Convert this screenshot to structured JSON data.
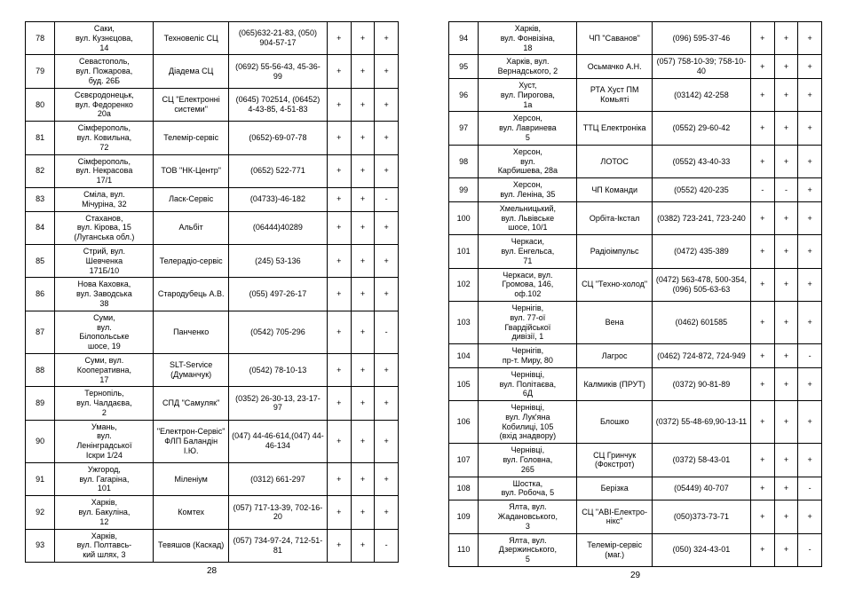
{
  "left": {
    "pageNum": "28",
    "rows": [
      {
        "n": "78",
        "addr": "Саки,\nвул. Кузнєцова,\n14",
        "name": "Техновеліс СЦ",
        "phone": "(065)632-21-83, (050) 904-57-17",
        "c1": "+",
        "c2": "+",
        "c3": "+"
      },
      {
        "n": "79",
        "addr": "Севастополь,\nвул. Пожарова,\nбуд. 26Б",
        "name": "Діадема СЦ",
        "phone": "(0692) 55-56-43, 45-36-99",
        "c1": "+",
        "c2": "+",
        "c3": "+"
      },
      {
        "n": "80",
        "addr": "Сєвєродонецьк,\nвул. Федоренко\n20а",
        "name": "СЦ \"Електронні системи\"",
        "phone": "(0645) 702514, (06452) 4-43-85, 4-51-83",
        "c1": "+",
        "c2": "+",
        "c3": "+"
      },
      {
        "n": "81",
        "addr": "Сімферополь,\nвул. Ковильна,\n72",
        "name": "Телемір-сервіс",
        "phone": "(0652)-69-07-78",
        "c1": "+",
        "c2": "+",
        "c3": "+"
      },
      {
        "n": "82",
        "addr": "Сімферополь,\nвул. Некрасова\n17/1",
        "name": "ТОВ \"НК-Центр\"",
        "phone": "(0652) 522-771",
        "c1": "+",
        "c2": "+",
        "c3": "+"
      },
      {
        "n": "83",
        "addr": "Сміла, вул.\nМічуріна, 32",
        "name": "Ласк-Сервіс",
        "phone": "(04733)-46-182",
        "c1": "+",
        "c2": "+",
        "c3": "-"
      },
      {
        "n": "84",
        "addr": "Стаханов,\nвул. Кірова, 15\n(Луганська обл.)",
        "name": "Альбіт",
        "phone": "(06444)40289",
        "c1": "+",
        "c2": "+",
        "c3": "+"
      },
      {
        "n": "85",
        "addr": "Стрий, вул.\nШевченка\n171Б/10",
        "name": "Телерадіо-сервіс",
        "phone": "(245) 53-136",
        "c1": "+",
        "c2": "+",
        "c3": "+"
      },
      {
        "n": "86",
        "addr": "Нова Каховка,\nвул. Заводська\n38",
        "name": "Стародубець А.В.",
        "phone": "(055) 497-26-17",
        "c1": "+",
        "c2": "+",
        "c3": "+"
      },
      {
        "n": "87",
        "addr": "Суми,\nвул.\nБілопольське\nшосе, 19",
        "name": "Панченко",
        "phone": "(0542) 705-296",
        "c1": "+",
        "c2": "+",
        "c3": "-"
      },
      {
        "n": "88",
        "addr": "Суми, вул.\nКооперативна,\n17",
        "name": "SLT-Service (Думанчук)",
        "phone": "(0542) 78-10-13",
        "c1": "+",
        "c2": "+",
        "c3": "+"
      },
      {
        "n": "89",
        "addr": "Тернопіль,\nвул. Чалдаєва,\n2",
        "name": "СПД \"Самуляк\"",
        "phone": "(0352) 26-30-13, 23-17-97",
        "c1": "+",
        "c2": "+",
        "c3": "+"
      },
      {
        "n": "90",
        "addr": "Умань,\nвул.\nЛенінградської\nІскри 1/24",
        "name": "\"Електрон-Сервіс\" ФЛП Баландін І.Ю.",
        "phone": "(047) 44-46-614,(047) 44-46-134",
        "c1": "+",
        "c2": "+",
        "c3": "+"
      },
      {
        "n": "91",
        "addr": "Ужгород,\nвул. Гагаріна,\n101",
        "name": "Міленіум",
        "phone": "(0312) 661-297",
        "c1": "+",
        "c2": "+",
        "c3": "+"
      },
      {
        "n": "92",
        "addr": "Харків,\nвул. Бакуліна,\n12",
        "name": "Комтех",
        "phone": "(057) 717-13-39, 702-16-20",
        "c1": "+",
        "c2": "+",
        "c3": "+"
      },
      {
        "n": "93",
        "addr": "Харків,\nвул. Полтавсь-\nкий шлях, 3",
        "name": "Тевяшов (Каскад)",
        "phone": "(057) 734-97-24, 712-51-81",
        "c1": "+",
        "c2": "+",
        "c3": "-"
      }
    ]
  },
  "right": {
    "pageNum": "29",
    "rows": [
      {
        "n": "94",
        "addr": "Харків,\nвул. Фонвізіна,\n18",
        "name": "ЧП \"Саванов\"",
        "phone": "(096) 595-37-46",
        "c1": "+",
        "c2": "+",
        "c3": "+"
      },
      {
        "n": "95",
        "addr": "Харків, вул.\nВернадського, 2",
        "name": "Осьмачко А.Н.",
        "phone": "(057) 758-10-39; 758-10-40",
        "c1": "+",
        "c2": "+",
        "c3": "+"
      },
      {
        "n": "96",
        "addr": "Хуст,\nвул. Пирогова,\n1а",
        "name": "РТА Хуст ПМ Комьяті",
        "phone": "(03142) 42-258",
        "c1": "+",
        "c2": "+",
        "c3": "+"
      },
      {
        "n": "97",
        "addr": "Херсон,\nвул. Лавринева\n5",
        "name": "ТТЦ Електроніка",
        "phone": "(0552) 29-60-42",
        "c1": "+",
        "c2": "+",
        "c3": "+"
      },
      {
        "n": "98",
        "addr": "Херсон,\nвул.\nКарбишева, 28а",
        "name": "ЛОТОС",
        "phone": "(0552) 43-40-33",
        "c1": "+",
        "c2": "+",
        "c3": "+"
      },
      {
        "n": "99",
        "addr": "Херсон,\nвул. Леніна, 35",
        "name": "ЧП Команди",
        "phone": "(0552) 420-235",
        "c1": "-",
        "c2": "-",
        "c3": "+"
      },
      {
        "n": "100",
        "addr": "Хмельницький,\nвул. Львівське\nшосе, 10/1",
        "name": "Орбіта-Ікстал",
        "phone": "(0382) 723-241, 723-240",
        "c1": "+",
        "c2": "+",
        "c3": "+"
      },
      {
        "n": "101",
        "addr": "Черкаси,\nвул. Енгельса,\n71",
        "name": "Радіоімпульс",
        "phone": "(0472) 435-389",
        "c1": "+",
        "c2": "+",
        "c3": "+"
      },
      {
        "n": "102",
        "addr": "Черкаси, вул.\nГромова, 146,\nоф.102",
        "name": "СЦ \"Техно-холод\"",
        "phone": "(0472) 563-478, 500-354, (096) 505-63-63",
        "c1": "+",
        "c2": "+",
        "c3": "+"
      },
      {
        "n": "103",
        "addr": "Чернігів,\nвул. 77-ої\nГвардійської\nдивізії, 1",
        "name": "Вена",
        "phone": "(0462) 601585",
        "c1": "+",
        "c2": "+",
        "c3": "+"
      },
      {
        "n": "104",
        "addr": "Чернігів,\nпр-т. Миру, 80",
        "name": "Лагрос",
        "phone": "(0462) 724-872, 724-949",
        "c1": "+",
        "c2": "+",
        "c3": "-"
      },
      {
        "n": "105",
        "addr": "Чернівці,\nвул. Політаєва,\n6Д",
        "name": "Калмиків (ПРУТ)",
        "phone": "(0372) 90-81-89",
        "c1": "+",
        "c2": "+",
        "c3": "+"
      },
      {
        "n": "106",
        "addr": "Чернівці,\nвул. Лук'яна\nКобилиці, 105\n(вхід знадвору)",
        "name": "Блошко",
        "phone": "(0372) 55-48-69,90-13-11",
        "c1": "+",
        "c2": "+",
        "c3": "+"
      },
      {
        "n": "107",
        "addr": "Чернівці,\nвул. Головна,\n265",
        "name": "СЦ Гринчук (Фокстрот)",
        "phone": "(0372) 58-43-01",
        "c1": "+",
        "c2": "+",
        "c3": "+"
      },
      {
        "n": "108",
        "addr": "Шостка,\nвул. Робоча, 5",
        "name": "Берізка",
        "phone": "(05449) 40-707",
        "c1": "+",
        "c2": "+",
        "c3": "-"
      },
      {
        "n": "109",
        "addr": "Ялта, вул.\nЖадановського,\n3",
        "name": "СЦ \"АВІ-Електро-нікс\"",
        "phone": "(050)373-73-71",
        "c1": "+",
        "c2": "+",
        "c3": "+"
      },
      {
        "n": "110",
        "addr": "Ялта, вул.\nДзержинського,\n5",
        "name": "Телемір-сервіс (маг.)",
        "phone": "(050) 324-43-01",
        "c1": "+",
        "c2": "+",
        "c3": "-"
      }
    ]
  }
}
